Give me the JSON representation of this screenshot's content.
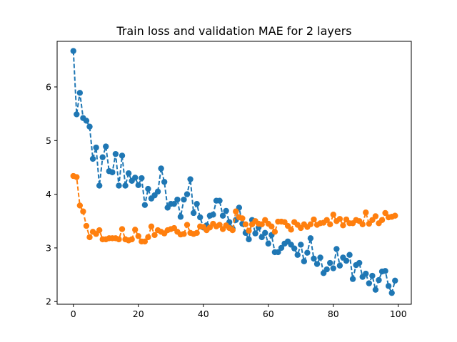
{
  "chart_data": {
    "type": "line",
    "title": "Train loss and validation MAE for 2 layers",
    "xlabel": "",
    "ylabel": "",
    "xlim": [
      -5,
      104
    ],
    "ylim": [
      1.95,
      6.85
    ],
    "xticks": [
      0,
      20,
      40,
      60,
      80,
      100
    ],
    "yticks": [
      2,
      3,
      4,
      5,
      6
    ],
    "grid": false,
    "legend": "none",
    "line_style": "dashed",
    "marker": "circle",
    "series": [
      {
        "color": "#1f77b4",
        "x": [
          0,
          1,
          2,
          3,
          4,
          5,
          6,
          7,
          8,
          9,
          10,
          11,
          12,
          13,
          14,
          15,
          16,
          17,
          18,
          19,
          20,
          21,
          22,
          23,
          24,
          25,
          26,
          27,
          28,
          29,
          30,
          31,
          32,
          33,
          34,
          35,
          36,
          37,
          38,
          39,
          40,
          41,
          42,
          43,
          44,
          45,
          46,
          47,
          48,
          49,
          50,
          51,
          52,
          53,
          54,
          55,
          56,
          57,
          58,
          59,
          60,
          61,
          62,
          63,
          64,
          65,
          66,
          67,
          68,
          69,
          70,
          71,
          72,
          73,
          74,
          75,
          76,
          77,
          78,
          79,
          80,
          81,
          82,
          83,
          84,
          85,
          86,
          87,
          88,
          89,
          90,
          91,
          92,
          93,
          94,
          95,
          96,
          97,
          98,
          99
        ],
        "values": [
          6.67,
          5.49,
          5.89,
          5.42,
          5.37,
          5.26,
          4.66,
          4.87,
          4.16,
          4.69,
          4.89,
          4.43,
          4.41,
          4.75,
          4.16,
          4.72,
          4.16,
          4.39,
          4.25,
          4.31,
          4.17,
          4.3,
          3.8,
          4.1,
          3.92,
          3.98,
          4.05,
          4.48,
          4.23,
          3.75,
          3.82,
          3.82,
          3.9,
          3.58,
          3.9,
          4.0,
          4.28,
          3.65,
          3.82,
          3.57,
          3.38,
          3.42,
          3.6,
          3.62,
          3.88,
          3.88,
          3.6,
          3.69,
          3.48,
          3.36,
          3.52,
          3.75,
          3.45,
          3.28,
          3.16,
          3.52,
          3.27,
          3.38,
          3.2,
          3.28,
          3.08,
          3.24,
          2.92,
          2.92,
          3.0,
          3.08,
          3.12,
          3.06,
          2.99,
          2.87,
          3.06,
          2.75,
          2.91,
          3.18,
          2.8,
          2.7,
          2.82,
          2.53,
          2.6,
          2.72,
          2.62,
          2.98,
          2.67,
          2.82,
          2.76,
          2.87,
          2.42,
          2.68,
          2.72,
          2.46,
          2.52,
          2.34,
          2.48,
          2.22,
          2.4,
          2.56,
          2.57,
          2.29,
          2.16,
          2.39
        ]
      },
      {
        "color": "#ff7f0e",
        "x": [
          0,
          1,
          2,
          3,
          4,
          5,
          6,
          7,
          8,
          9,
          10,
          11,
          12,
          13,
          14,
          15,
          16,
          17,
          18,
          19,
          20,
          21,
          22,
          23,
          24,
          25,
          26,
          27,
          28,
          29,
          30,
          31,
          32,
          33,
          34,
          35,
          36,
          37,
          38,
          39,
          40,
          41,
          42,
          43,
          44,
          45,
          46,
          47,
          48,
          49,
          50,
          51,
          52,
          53,
          54,
          55,
          56,
          57,
          58,
          59,
          60,
          61,
          62,
          63,
          64,
          65,
          66,
          67,
          68,
          69,
          70,
          71,
          72,
          73,
          74,
          75,
          76,
          77,
          78,
          79,
          80,
          81,
          82,
          83,
          84,
          85,
          86,
          87,
          88,
          89,
          90,
          91,
          92,
          93,
          94,
          95,
          96,
          97,
          98,
          99
        ],
        "values": [
          4.34,
          4.32,
          3.79,
          3.68,
          3.41,
          3.2,
          3.3,
          3.26,
          3.33,
          3.16,
          3.16,
          3.18,
          3.18,
          3.18,
          3.16,
          3.35,
          3.16,
          3.14,
          3.16,
          3.34,
          3.22,
          3.12,
          3.12,
          3.2,
          3.4,
          3.24,
          3.33,
          3.3,
          3.27,
          3.33,
          3.35,
          3.37,
          3.3,
          3.25,
          3.26,
          3.43,
          3.28,
          3.26,
          3.28,
          3.4,
          3.39,
          3.33,
          3.38,
          3.45,
          3.4,
          3.43,
          3.35,
          3.42,
          3.37,
          3.33,
          3.68,
          3.57,
          3.55,
          3.44,
          3.32,
          3.44,
          3.5,
          3.45,
          3.44,
          3.52,
          3.45,
          3.4,
          3.3,
          3.49,
          3.49,
          3.48,
          3.41,
          3.34,
          3.48,
          3.43,
          3.37,
          3.44,
          3.39,
          3.44,
          3.53,
          3.43,
          3.46,
          3.47,
          3.52,
          3.44,
          3.62,
          3.5,
          3.54,
          3.42,
          3.53,
          3.46,
          3.46,
          3.52,
          3.5,
          3.44,
          3.66,
          3.45,
          3.52,
          3.59,
          3.46,
          3.52,
          3.65,
          3.57,
          3.58,
          3.6
        ]
      }
    ]
  }
}
